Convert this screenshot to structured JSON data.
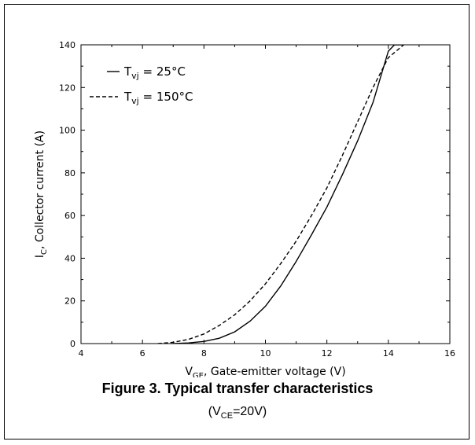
{
  "figure": {
    "title": "Figure 3. Typical transfer characteristics",
    "condition": {
      "prefix": "(V",
      "sub": "CE",
      "suffix": "=20V)"
    }
  },
  "chart_data": {
    "type": "line",
    "xlabel": {
      "main": "V",
      "sub": "GE",
      "rest": ", Gate-emitter voltage (V)"
    },
    "ylabel": {
      "main": "I",
      "sub": "C",
      "rest": ", Collector current (A)"
    },
    "xlim": [
      4,
      16
    ],
    "ylim": [
      0,
      140
    ],
    "xticks": [
      4,
      6,
      8,
      10,
      12,
      14,
      16
    ],
    "yticks": [
      0,
      20,
      40,
      60,
      80,
      100,
      120,
      140
    ],
    "grid": false,
    "legend_position": "top-left",
    "series": [
      {
        "name": {
          "main": "T",
          "sub": "vj",
          "rest": " = 25°C"
        },
        "line_style": "solid",
        "color": "#000000",
        "x": [
          7.0,
          7.5,
          8.0,
          8.5,
          9.0,
          9.5,
          10.0,
          10.5,
          11.0,
          11.5,
          12.0,
          12.5,
          13.0,
          13.5,
          14.0,
          14.2,
          14.5
        ],
        "y": [
          0,
          0.3,
          1.0,
          2.5,
          5.5,
          10.5,
          17.5,
          27,
          38.5,
          51,
          64,
          79,
          95,
          113,
          137,
          140,
          140
        ]
      },
      {
        "name": {
          "main": "T",
          "sub": "vj",
          "rest": " = 150°C"
        },
        "line_style": "dashed",
        "color": "#000000",
        "x": [
          6.5,
          7.0,
          7.5,
          8.0,
          8.5,
          9.0,
          9.5,
          10.0,
          10.5,
          11.0,
          11.5,
          12.0,
          12.5,
          13.0,
          13.5,
          14.0,
          14.5
        ],
        "y": [
          0,
          0.6,
          2.0,
          4.5,
          8.5,
          13.5,
          20,
          28,
          37.5,
          48,
          60,
          73,
          88,
          104,
          120,
          134,
          140
        ]
      }
    ]
  }
}
